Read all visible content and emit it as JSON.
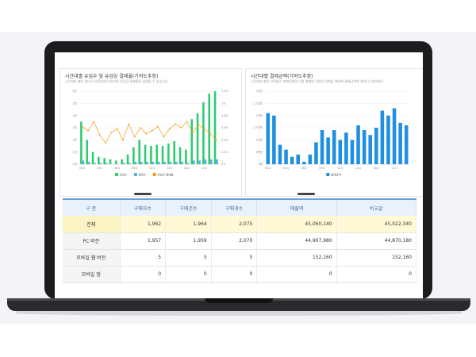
{
  "left_panel": {
    "title": "시간대별 유입수 및 유입당 결제율(기여도추정)",
    "subtitle": "시간대와 별로 알아서 유입되었는지(이와 유입당 결제율을 살펴볼 수 있습니다."
  },
  "right_panel": {
    "title": "시간대별 결제금액(기여도추정)",
    "subtitle": "시간대와 별로 고객들이 마케팅채널 이용 행태와 이용된 마케팅 채널에 결제금액에 얼마나 기여하였~"
  },
  "table": {
    "headers": [
      "구 분",
      "구매자수",
      "구매건수",
      "구매개수",
      "매출액",
      "비교값"
    ],
    "rows": [
      {
        "label": "전체",
        "values": [
          "1,962",
          "1,964",
          "2,075",
          "45,060,140",
          "45,022,340"
        ]
      },
      {
        "label": "PC 버전",
        "values": [
          "1,957",
          "1,959",
          "2,070",
          "44,907,980",
          "44,870,180"
        ]
      },
      {
        "label": "모바일 웹 버전",
        "values": [
          "5",
          "5",
          "5",
          "152,160",
          "152,160"
        ]
      },
      {
        "label": "모바일 앱",
        "values": [
          "0",
          "0",
          "0",
          "0",
          "0"
        ]
      }
    ]
  },
  "chart_data": [
    {
      "type": "bar",
      "ylim": [
        0,
        6
      ],
      "y2lim": [
        0,
        1.2
      ],
      "categories": [
        "00시",
        "01시",
        "02시",
        "03시",
        "04시",
        "05시",
        "06시",
        "07시",
        "08시",
        "09시",
        "10시",
        "11시",
        "12시",
        "13시",
        "14시",
        "15시",
        "16시",
        "17시",
        "18시",
        "19시",
        "20시",
        "21시",
        "22시",
        "23시"
      ],
      "series": [
        {
          "name": "유입수",
          "values": [
            3.5,
            2.0,
            1.0,
            0.6,
            0.5,
            0.4,
            0.3,
            0.4,
            0.8,
            1.4,
            2.0,
            1.6,
            1.5,
            1.6,
            1.5,
            1.7,
            1.9,
            1.4,
            1.2,
            3.7,
            4.2,
            5.1,
            5.8,
            6.0
          ],
          "color": "#2ecc71"
        },
        {
          "name": "결제수",
          "values": [
            0.3,
            0.2,
            0.1,
            0.1,
            0.1,
            0.0,
            0.0,
            0.1,
            0.1,
            0.2,
            0.2,
            0.2,
            0.2,
            0.2,
            0.2,
            0.2,
            0.2,
            0.2,
            0.1,
            0.3,
            0.3,
            0.4,
            0.4,
            0.4
          ],
          "color": "#5dade2"
        },
        {
          "name": "유입당 결제율",
          "values": [
            0.62,
            0.55,
            0.7,
            0.48,
            0.35,
            0.52,
            0.58,
            0.4,
            0.66,
            0.45,
            0.6,
            0.5,
            0.55,
            0.62,
            0.45,
            0.58,
            0.66,
            0.6,
            0.7,
            0.52,
            0.65,
            0.58,
            0.5,
            0.4
          ],
          "color": "#f39c12"
        }
      ],
      "y_ticks": [
        "0건",
        "1건",
        "2건",
        "3건",
        "4건",
        "5건",
        "6건"
      ],
      "y2_ticks": [
        "0%",
        "0.2%",
        "0.4%",
        "0.6%",
        "0.8%",
        "1%",
        "1.2%"
      ],
      "x_ticks": [
        "00시",
        "03시",
        "06시",
        "09시",
        "12시",
        "15시",
        "18시",
        "21시"
      ]
    },
    {
      "type": "bar",
      "ylim": [
        0,
        3
      ],
      "categories": [
        "00시",
        "01시",
        "02시",
        "03시",
        "04시",
        "05시",
        "06시",
        "07시",
        "08시",
        "09시",
        "10시",
        "11시",
        "12시",
        "13시",
        "14시",
        "15시",
        "16시",
        "17시",
        "18시",
        "19시",
        "20시",
        "21시",
        "22시",
        "23시"
      ],
      "series": [
        {
          "name": "결제금액",
          "values": [
            2.1,
            2.0,
            0.8,
            0.6,
            0.3,
            0.4,
            0.1,
            0.4,
            0.9,
            1.4,
            1.1,
            1.4,
            1.0,
            1.3,
            1.0,
            1.6,
            1.4,
            1.2,
            1.5,
            2.2,
            2.0,
            2.3,
            1.7,
            1.6
          ],
          "color": "#1e8fe1"
        }
      ],
      "y_ticks": [
        "0원",
        "5백만",
        "1천만",
        "1.5천만",
        "2천만",
        "2.5천만",
        "3천만"
      ],
      "x_ticks": [
        "00시",
        "03시",
        "06시",
        "09시",
        "12시",
        "15시",
        "18시",
        "21시"
      ]
    }
  ]
}
